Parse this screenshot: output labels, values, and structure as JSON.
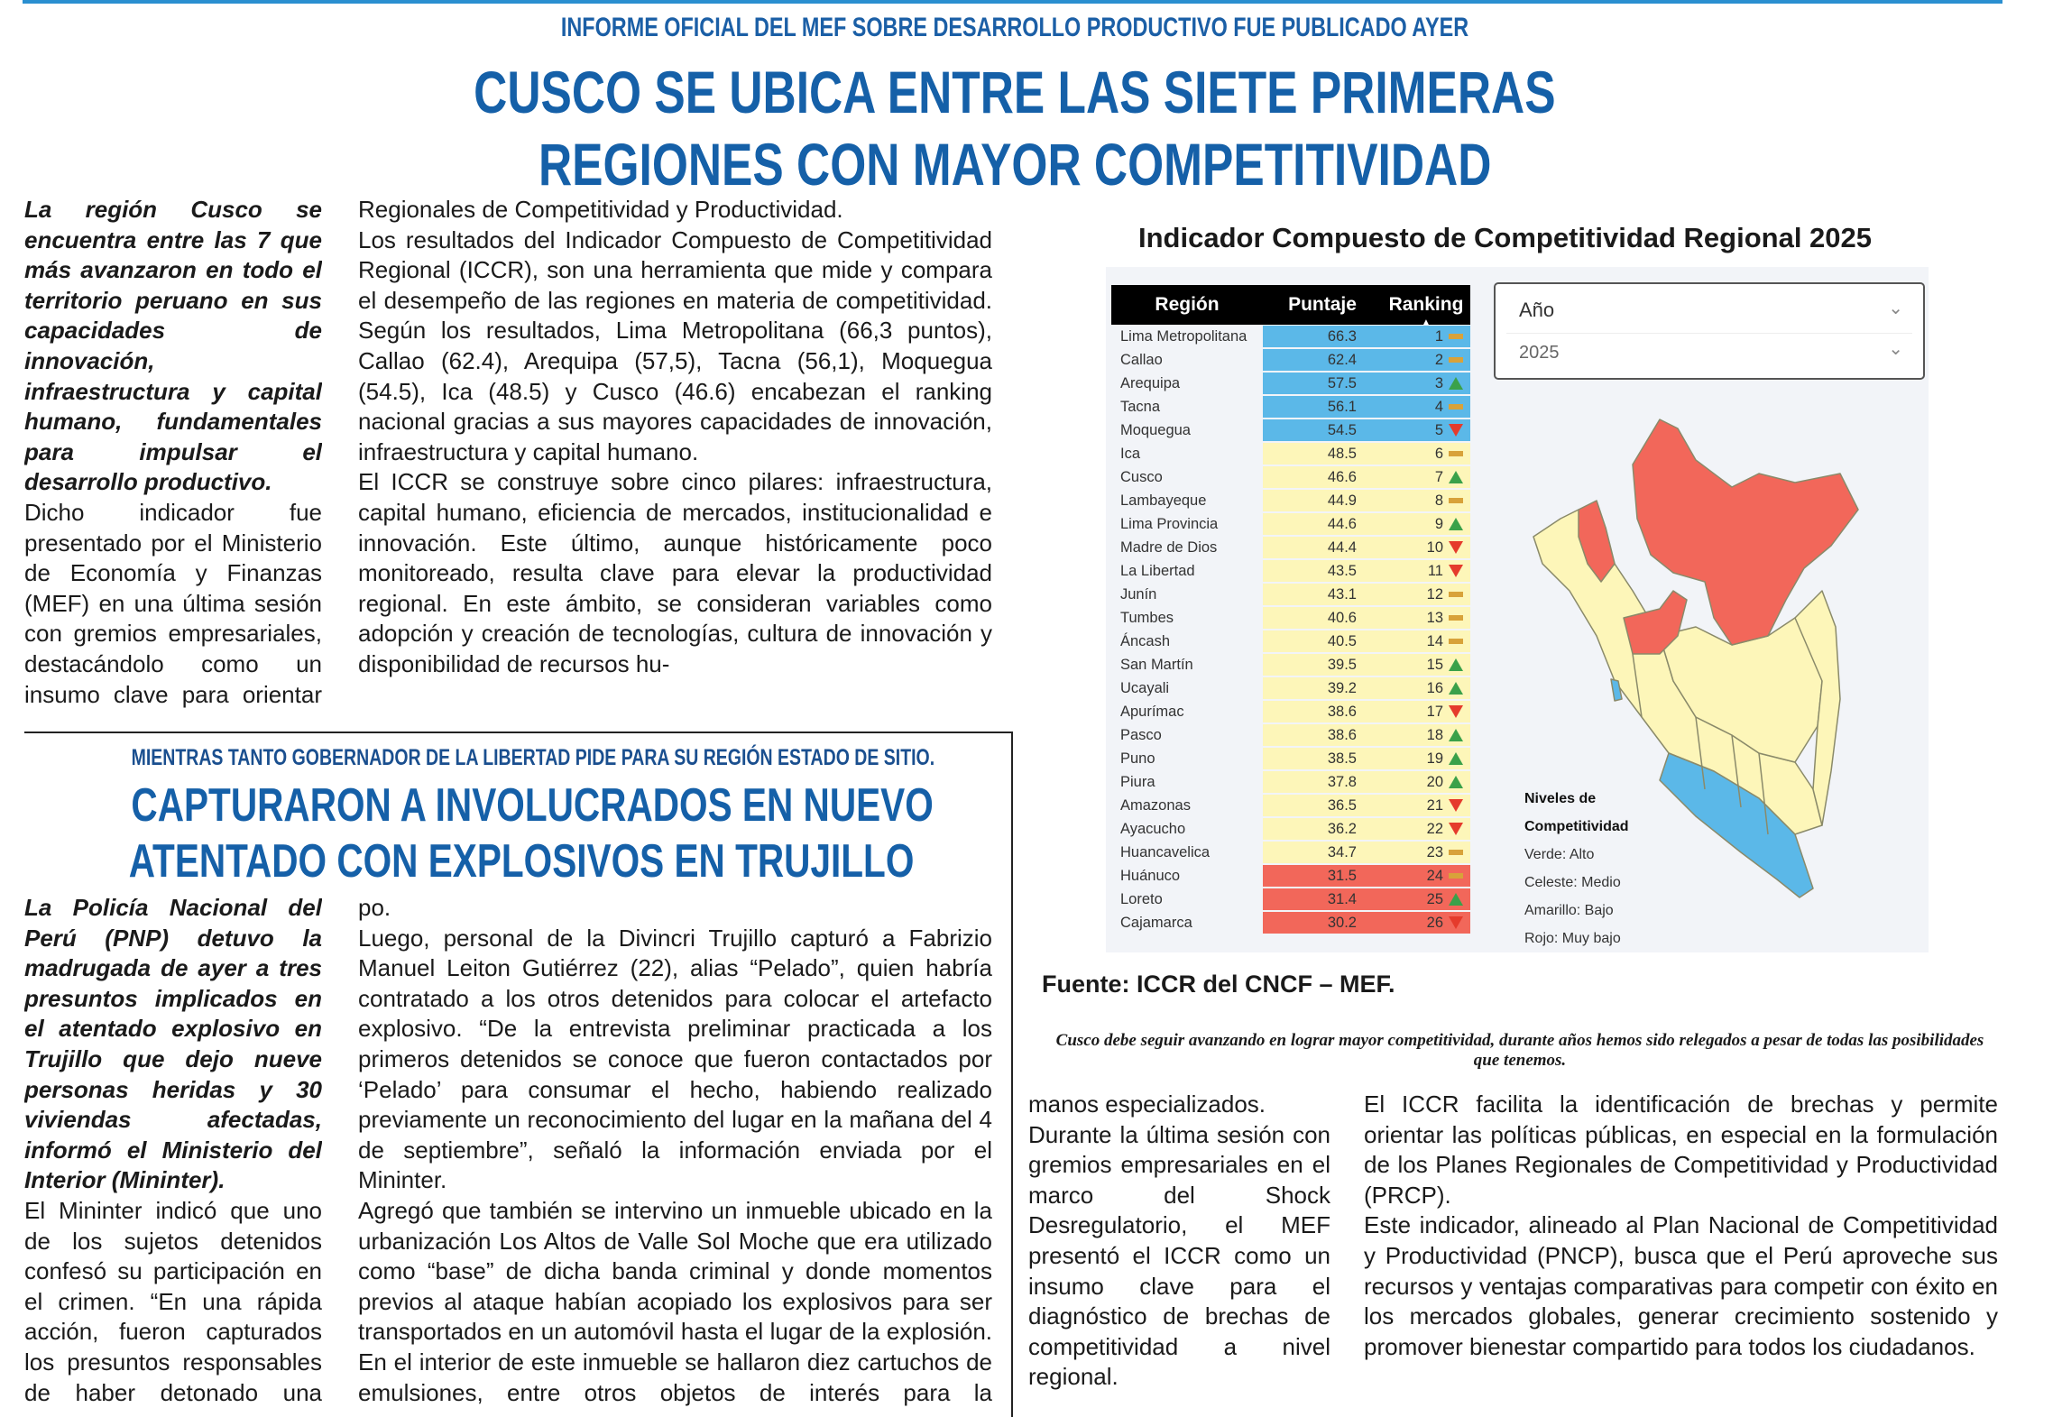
{
  "article1": {
    "kicker": "INFORME  OFICIAL  DEL MEF SOBRE DESARROLLO PRODUCTIVO FUE PUBLICADO AYER",
    "headline": [
      "CUSCO SE UBICA ENTRE LAS SIETE PRIMERAS",
      "REGIONES CON MAYOR COMPETITIVIDAD"
    ],
    "lead": "La región Cusco se encuentra entre las 7 que más avanzaron en todo el territorio peruano en sus capacidades de innovación, infraestructura y capital humano, fundamentales para impulsar el desarrollo productivo.",
    "col1": "Dicho indicador fue presentado por el Ministerio de Economía y Finanzas (MEF) en una última sesión con gremios empresariales, destacándolo como un insumo clave para orientar los Planes",
    "col2": [
      "Regionales de Competitividad y Productividad.",
      "Los resultados del Indicador Compuesto de Competitividad Regional (ICCR), son una herramienta que mide y compara el desempeño de las regiones en materia de competitividad. Según los resultados, Lima Metropolitana (66,3 puntos), Callao (62.4), Arequipa (57,5), Tacna (56,1), Moquegua (54.5), Ica (48.5) y Cusco (46.6) encabezan el ranking nacional gracias a sus mayores capacidades de innovación, infraestructura y capital humano.",
      "El ICCR se construye sobre cinco pilares: infraestructura, capital humano, eficiencia de mercados, institucionalidad e innovación. Este último, aunque históricamente poco monitoreado, resulta clave para elevar la productividad regional. En este ámbito, se consideran variables como adopción y creación de tecnologías, cultura de innovación y disponibilidad de recursos hu-"
    ],
    "col3": [
      "manos especializados.",
      "Durante la última sesión con gremios empresariales en el marco del Shock Desregulatorio, el MEF presentó el ICCR como un insumo clave para el diagnóstico de brechas de competitividad a nivel regional."
    ],
    "col4": [
      "El ICCR facilita la identificación de brechas y permite orientar las políticas públicas, en especial en la formulación de los Planes Regionales de Competitividad y Productividad (PRCP).",
      "Este indicador, alineado al Plan Nacional de Competitividad y Productividad (PNCP), busca que el Perú aproveche sus recursos y ventajas comparativas para competir con éxito en los mercados globales, generar crecimiento sostenido y promover bienestar compartido para todos los ciudadanos."
    ],
    "source": "Fuente: ICCR del CNCF – MEF.",
    "caption": "Cusco debe seguir avanzando en lograr mayor competitividad, durante años hemos sido relegados a pesar de todas las posibilidades que tenemos."
  },
  "article2": {
    "kicker": "MIENTRAS TANTO GOBERNADOR DE LA LIBERTAD PIDE PARA SU REGIÓN ESTADO DE SITIO.",
    "headline": [
      "CAPTURARON A INVOLUCRADOS EN NUEVO",
      "ATENTADO CON EXPLOSIVOS EN TRUJILLO"
    ],
    "lead": "La Policía Nacional del Perú (PNP) detuvo la madrugada de ayer a tres presuntos implicados en el atentado explosivo en Trujillo que dejo nueve personas heridas y 30 viviendas afectadas, informó el Ministerio del Interior (Mininter).",
    "col1": "El Mininter indicó que uno de los sujetos detenidos confesó su participación en el crimen. “En una rápida acción, fueron capturados los presuntos responsables de haber detonado una carga ex-",
    "col2": [
      "po.",
      "Luego, personal de la Divincri Trujillo capturó a Fabrizio Manuel Leiton Gutiérrez (22), alias “Pelado”, quien habría contratado a los otros detenidos para colocar el artefacto explosivo. “De la entrevista preliminar practicada a los primeros detenidos se conoce que fueron contactados por ‘Pelado’ para consumar el hecho, habiendo realizado previamente un reconocimiento del lugar en la mañana del 4 de septiembre”, señaló la información enviada por el Mininter.",
      "Agregó  que también se intervino un inmueble ubicado en la urbanización Los Altos de Valle Sol Moche que era utilizado como “base” de dicha banda criminal y donde momentos previos al ataque habían acopiado los explosivos para ser transportados en un automóvil hasta el lugar de la explosión. En el interior de este inmueble se hallaron diez cartuchos de emulsiones, entre otros objetos de interés para la investigación."
    ]
  },
  "filter": {
    "label": "Año",
    "value": "2025"
  },
  "legend": {
    "title": [
      "Niveles de",
      "Competitividad"
    ],
    "items": [
      "Verde: Alto",
      "Celeste: Medio",
      "Amarillo: Bajo",
      "Rojo: Muy bajo"
    ]
  },
  "colors": {
    "accent": "#1560a8",
    "medio": "#5bb8e8",
    "bajo": "#fdf6b9",
    "muy_bajo": "#f2675a",
    "up": "#3aa14a",
    "down": "#e53b2c",
    "flat": "#d8a23a"
  },
  "chart_data": {
    "type": "table",
    "title": "Indicador Compuesto de Competitividad Regional 2025",
    "columns": [
      "Región",
      "Puntaje",
      "Ranking"
    ],
    "rows": [
      {
        "region": "Lima Metropolitana",
        "score": 66.3,
        "rank": 1,
        "trend": "flat",
        "level": "medio"
      },
      {
        "region": "Callao",
        "score": 62.4,
        "rank": 2,
        "trend": "flat",
        "level": "medio"
      },
      {
        "region": "Arequipa",
        "score": 57.5,
        "rank": 3,
        "trend": "up",
        "level": "medio"
      },
      {
        "region": "Tacna",
        "score": 56.1,
        "rank": 4,
        "trend": "flat",
        "level": "medio"
      },
      {
        "region": "Moquegua",
        "score": 54.5,
        "rank": 5,
        "trend": "down",
        "level": "medio"
      },
      {
        "region": "Ica",
        "score": 48.5,
        "rank": 6,
        "trend": "flat",
        "level": "bajo"
      },
      {
        "region": "Cusco",
        "score": 46.6,
        "rank": 7,
        "trend": "up",
        "level": "bajo"
      },
      {
        "region": "Lambayeque",
        "score": 44.9,
        "rank": 8,
        "trend": "flat",
        "level": "bajo"
      },
      {
        "region": "Lima Provincia",
        "score": 44.6,
        "rank": 9,
        "trend": "up",
        "level": "bajo"
      },
      {
        "region": "Madre de Dios",
        "score": 44.4,
        "rank": 10,
        "trend": "down",
        "level": "bajo"
      },
      {
        "region": "La Libertad",
        "score": 43.5,
        "rank": 11,
        "trend": "down",
        "level": "bajo"
      },
      {
        "region": "Junín",
        "score": 43.1,
        "rank": 12,
        "trend": "flat",
        "level": "bajo"
      },
      {
        "region": "Tumbes",
        "score": 40.6,
        "rank": 13,
        "trend": "flat",
        "level": "bajo"
      },
      {
        "region": "Áncash",
        "score": 40.5,
        "rank": 14,
        "trend": "flat",
        "level": "bajo"
      },
      {
        "region": "San Martín",
        "score": 39.5,
        "rank": 15,
        "trend": "up",
        "level": "bajo"
      },
      {
        "region": "Ucayali",
        "score": 39.2,
        "rank": 16,
        "trend": "up",
        "level": "bajo"
      },
      {
        "region": "Apurímac",
        "score": 38.6,
        "rank": 17,
        "trend": "down",
        "level": "bajo"
      },
      {
        "region": "Pasco",
        "score": 38.6,
        "rank": 18,
        "trend": "up",
        "level": "bajo"
      },
      {
        "region": "Puno",
        "score": 38.5,
        "rank": 19,
        "trend": "up",
        "level": "bajo"
      },
      {
        "region": "Piura",
        "score": 37.8,
        "rank": 20,
        "trend": "up",
        "level": "bajo"
      },
      {
        "region": "Amazonas",
        "score": 36.5,
        "rank": 21,
        "trend": "down",
        "level": "bajo"
      },
      {
        "region": "Ayacucho",
        "score": 36.2,
        "rank": 22,
        "trend": "down",
        "level": "bajo"
      },
      {
        "region": "Huancavelica",
        "score": 34.7,
        "rank": 23,
        "trend": "flat",
        "level": "bajo"
      },
      {
        "region": "Huánuco",
        "score": 31.5,
        "rank": 24,
        "trend": "flat",
        "level": "muy_bajo"
      },
      {
        "region": "Loreto",
        "score": 31.4,
        "rank": 25,
        "trend": "up",
        "level": "muy_bajo"
      },
      {
        "region": "Cajamarca",
        "score": 30.2,
        "rank": 26,
        "trend": "down",
        "level": "muy_bajo"
      }
    ]
  }
}
